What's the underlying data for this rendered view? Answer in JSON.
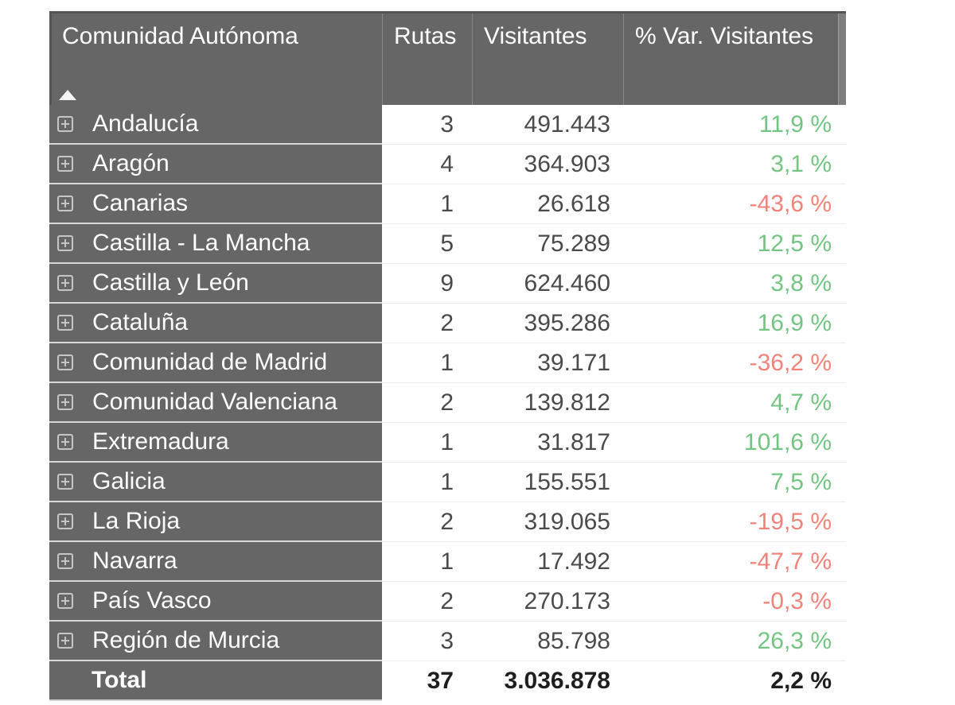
{
  "colors": {
    "header_background": "#666666",
    "header_text": "#ffffff",
    "data_text": "#4a4a4a",
    "positive_variation": "#74c583",
    "negative_variation": "#f2837b"
  },
  "icons": {
    "row_expand": "plus-box-icon",
    "column_sort": "triangle-up-ascending"
  },
  "table": {
    "columns": [
      {
        "label": "Comunidad Autónoma",
        "sort": "ascending"
      },
      {
        "label": "Rutas"
      },
      {
        "label": "Visitantes"
      },
      {
        "label": "% Var. Visitantes"
      }
    ],
    "rows": [
      {
        "name": "Andalucía",
        "rutas": "3",
        "visitantes": "491.443",
        "var": "11,9 %",
        "trend": "up"
      },
      {
        "name": "Aragón",
        "rutas": "4",
        "visitantes": "364.903",
        "var": "3,1 %",
        "trend": "up"
      },
      {
        "name": "Canarias",
        "rutas": "1",
        "visitantes": "26.618",
        "var": "-43,6 %",
        "trend": "down"
      },
      {
        "name": "Castilla - La Mancha",
        "rutas": "5",
        "visitantes": "75.289",
        "var": "12,5 %",
        "trend": "up"
      },
      {
        "name": "Castilla y León",
        "rutas": "9",
        "visitantes": "624.460",
        "var": "3,8 %",
        "trend": "up"
      },
      {
        "name": "Cataluña",
        "rutas": "2",
        "visitantes": "395.286",
        "var": "16,9 %",
        "trend": "up"
      },
      {
        "name": "Comunidad de Madrid",
        "rutas": "1",
        "visitantes": "39.171",
        "var": "-36,2 %",
        "trend": "down"
      },
      {
        "name": "Comunidad Valenciana",
        "rutas": "2",
        "visitantes": "139.812",
        "var": "4,7 %",
        "trend": "up"
      },
      {
        "name": "Extremadura",
        "rutas": "1",
        "visitantes": "31.817",
        "var": "101,6 %",
        "trend": "up"
      },
      {
        "name": "Galicia",
        "rutas": "1",
        "visitantes": "155.551",
        "var": "7,5 %",
        "trend": "up"
      },
      {
        "name": "La Rioja",
        "rutas": "2",
        "visitantes": "319.065",
        "var": "-19,5 %",
        "trend": "down"
      },
      {
        "name": "Navarra",
        "rutas": "1",
        "visitantes": "17.492",
        "var": "-47,7 %",
        "trend": "down"
      },
      {
        "name": "País Vasco",
        "rutas": "2",
        "visitantes": "270.173",
        "var": "-0,3 %",
        "trend": "down"
      },
      {
        "name": "Región de Murcia",
        "rutas": "3",
        "visitantes": "85.798",
        "var": "26,3 %",
        "trend": "up"
      }
    ],
    "total": {
      "name": "Total",
      "rutas": "37",
      "visitantes": "3.036.878",
      "var": "2,2 %"
    }
  }
}
